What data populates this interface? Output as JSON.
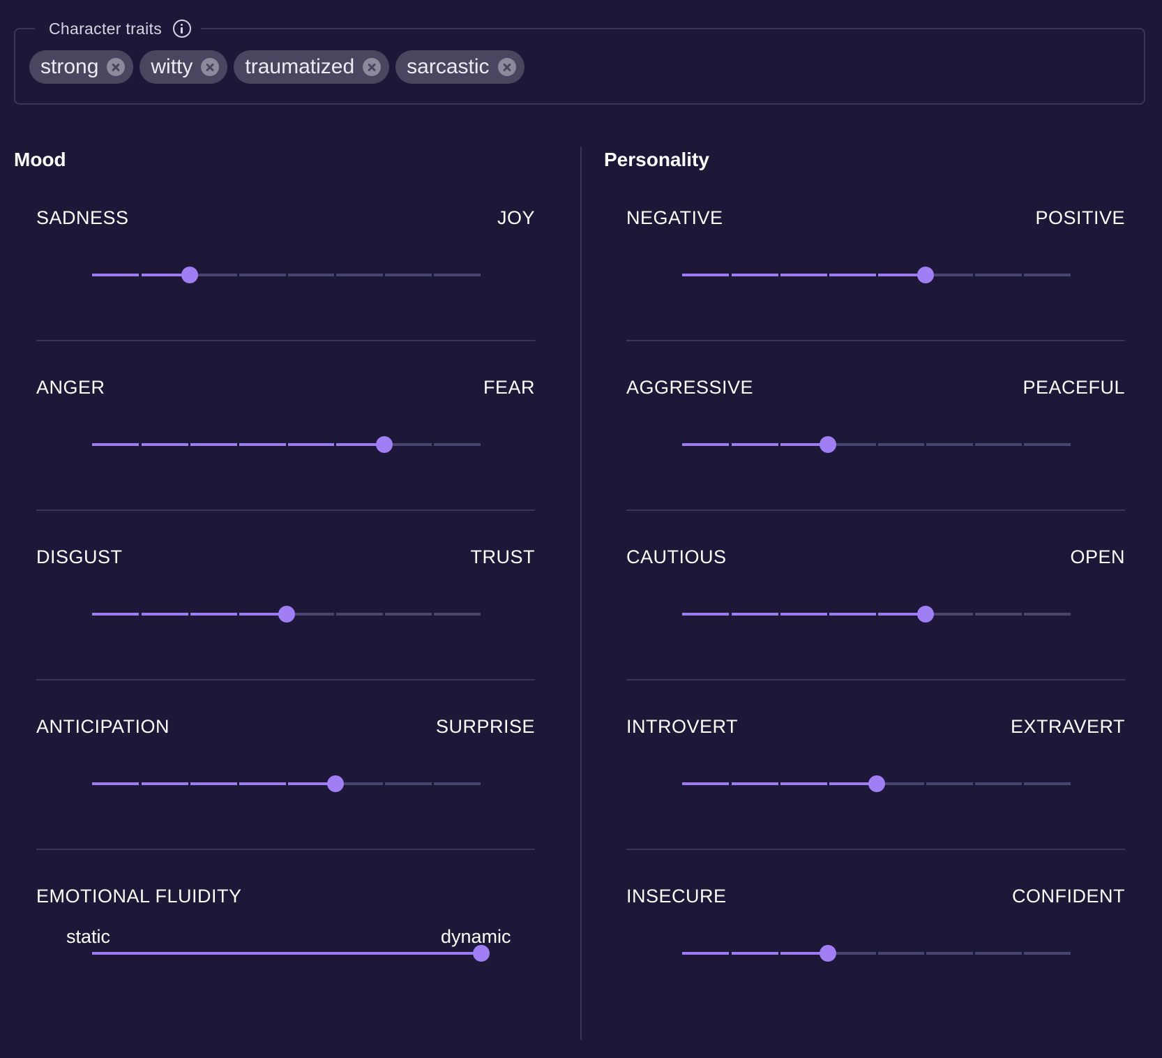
{
  "traits": {
    "label": "Character traits",
    "chips": [
      "strong",
      "witty",
      "traumatized",
      "sarcastic"
    ]
  },
  "mood": {
    "title": "Mood",
    "sliders": [
      {
        "left": "SADNESS",
        "right": "JOY",
        "value": 0.25
      },
      {
        "left": "ANGER",
        "right": "FEAR",
        "value": 0.75
      },
      {
        "left": "DISGUST",
        "right": "TRUST",
        "value": 0.5
      },
      {
        "left": "ANTICIPATION",
        "right": "SURPRISE",
        "value": 0.625
      },
      {
        "left": "EMOTIONAL FLUIDITY",
        "right": "",
        "value": 1.0,
        "continuous": true,
        "min_label": "static",
        "max_label": "dynamic"
      }
    ]
  },
  "personality": {
    "title": "Personality",
    "sliders": [
      {
        "left": "NEGATIVE",
        "right": "POSITIVE",
        "value": 0.625
      },
      {
        "left": "AGGRESSIVE",
        "right": "PEACEFUL",
        "value": 0.375
      },
      {
        "left": "CAUTIOUS",
        "right": "OPEN",
        "value": 0.625
      },
      {
        "left": "INTROVERT",
        "right": "EXTRAVERT",
        "value": 0.5
      },
      {
        "left": "INSECURE",
        "right": "CONFIDENT",
        "value": 0.375
      }
    ]
  },
  "colors": {
    "background": "#1d1838",
    "accent": "#9d7bf0",
    "track": "#4a4470"
  }
}
